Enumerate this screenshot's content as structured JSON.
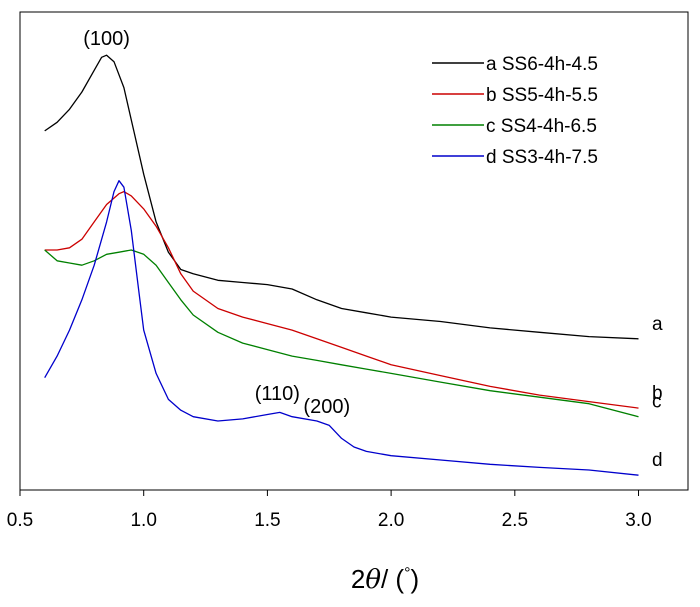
{
  "chart_data": {
    "type": "line",
    "title": "",
    "xlabel": "2θ / (°)",
    "xlabel_parts": {
      "prefix": "2",
      "symbol": "θ",
      "suffix": "/ (",
      "degree": "°",
      "close": ")"
    },
    "ylabel": "",
    "xlim": [
      0.5,
      3.2
    ],
    "ylim": [
      0,
      100
    ],
    "x_ticks": [
      0.5,
      1.0,
      1.5,
      2.0,
      2.5,
      3.0
    ],
    "x_tick_labels": [
      "0.5",
      "1.0",
      "1.5",
      "2.0",
      "2.5",
      "3.0"
    ],
    "y_ticks_visible": false,
    "grid": false,
    "legend_position": "top-right",
    "series": [
      {
        "name": "a  SS6-4h-4.5",
        "end_label": "a",
        "color": "#000000",
        "points": [
          [
            0.6,
            79
          ],
          [
            0.65,
            81
          ],
          [
            0.7,
            84
          ],
          [
            0.75,
            88
          ],
          [
            0.8,
            93
          ],
          [
            0.83,
            96
          ],
          [
            0.85,
            96.5
          ],
          [
            0.88,
            95
          ],
          [
            0.92,
            89
          ],
          [
            0.96,
            79
          ],
          [
            1.0,
            69
          ],
          [
            1.05,
            58
          ],
          [
            1.1,
            51
          ],
          [
            1.15,
            47
          ],
          [
            1.2,
            46
          ],
          [
            1.3,
            44.5
          ],
          [
            1.4,
            44
          ],
          [
            1.5,
            43.5
          ],
          [
            1.6,
            42.5
          ],
          [
            1.7,
            40
          ],
          [
            1.8,
            38
          ],
          [
            1.9,
            37
          ],
          [
            2.0,
            36
          ],
          [
            2.2,
            35
          ],
          [
            2.4,
            33.5
          ],
          [
            2.6,
            32.5
          ],
          [
            2.8,
            31.5
          ],
          [
            3.0,
            31
          ]
        ]
      },
      {
        "name": "b  SS5-4h-5.5",
        "end_label": "b",
        "color": "#cc0000",
        "points": [
          [
            0.6,
            51.5
          ],
          [
            0.65,
            51.5
          ],
          [
            0.7,
            52
          ],
          [
            0.75,
            54
          ],
          [
            0.8,
            58
          ],
          [
            0.85,
            62
          ],
          [
            0.9,
            64.5
          ],
          [
            0.92,
            65
          ],
          [
            0.95,
            64
          ],
          [
            1.0,
            61
          ],
          [
            1.05,
            57
          ],
          [
            1.1,
            52
          ],
          [
            1.15,
            46
          ],
          [
            1.2,
            42
          ],
          [
            1.3,
            38
          ],
          [
            1.4,
            36
          ],
          [
            1.5,
            34.5
          ],
          [
            1.6,
            33
          ],
          [
            1.7,
            31
          ],
          [
            1.8,
            29
          ],
          [
            1.9,
            27
          ],
          [
            2.0,
            25
          ],
          [
            2.2,
            22.5
          ],
          [
            2.4,
            20
          ],
          [
            2.6,
            18
          ],
          [
            2.8,
            16.5
          ],
          [
            3.0,
            15
          ]
        ]
      },
      {
        "name": "c  SS4-4h-6.5",
        "end_label": "c",
        "color": "#008000",
        "points": [
          [
            0.6,
            51.5
          ],
          [
            0.65,
            49
          ],
          [
            0.7,
            48.5
          ],
          [
            0.75,
            48
          ],
          [
            0.8,
            49
          ],
          [
            0.85,
            50.5
          ],
          [
            0.9,
            51
          ],
          [
            0.95,
            51.5
          ],
          [
            1.0,
            50.5
          ],
          [
            1.05,
            48
          ],
          [
            1.1,
            44
          ],
          [
            1.15,
            40
          ],
          [
            1.2,
            36.5
          ],
          [
            1.3,
            32.5
          ],
          [
            1.4,
            30
          ],
          [
            1.5,
            28.5
          ],
          [
            1.6,
            27
          ],
          [
            1.7,
            26
          ],
          [
            1.8,
            25
          ],
          [
            1.9,
            24
          ],
          [
            2.0,
            23
          ],
          [
            2.2,
            21
          ],
          [
            2.4,
            19
          ],
          [
            2.6,
            17.5
          ],
          [
            2.8,
            16
          ],
          [
            3.0,
            13
          ]
        ]
      },
      {
        "name": "d  SS3-4h-7.5",
        "end_label": "d",
        "color": "#0000cc",
        "points": [
          [
            0.6,
            22
          ],
          [
            0.65,
            27
          ],
          [
            0.7,
            33
          ],
          [
            0.75,
            40
          ],
          [
            0.8,
            48
          ],
          [
            0.85,
            58
          ],
          [
            0.88,
            65
          ],
          [
            0.9,
            67.5
          ],
          [
            0.92,
            66
          ],
          [
            0.95,
            56
          ],
          [
            0.98,
            42
          ],
          [
            1.0,
            33
          ],
          [
            1.05,
            23
          ],
          [
            1.1,
            17
          ],
          [
            1.15,
            14.5
          ],
          [
            1.2,
            13
          ],
          [
            1.3,
            12
          ],
          [
            1.4,
            12.5
          ],
          [
            1.5,
            13.5
          ],
          [
            1.55,
            14
          ],
          [
            1.6,
            13
          ],
          [
            1.7,
            12
          ],
          [
            1.75,
            11
          ],
          [
            1.8,
            8
          ],
          [
            1.85,
            6
          ],
          [
            1.9,
            5
          ],
          [
            2.0,
            4
          ],
          [
            2.2,
            3
          ],
          [
            2.4,
            2
          ],
          [
            2.6,
            1.3
          ],
          [
            2.8,
            0.7
          ],
          [
            3.0,
            -0.5
          ]
        ]
      }
    ],
    "annotations": [
      {
        "text": "(100)",
        "x": 0.85,
        "y": 97
      },
      {
        "text": "(110)",
        "x": 1.54,
        "y": 15
      },
      {
        "text": "(200)",
        "x": 1.74,
        "y": 12
      }
    ]
  }
}
